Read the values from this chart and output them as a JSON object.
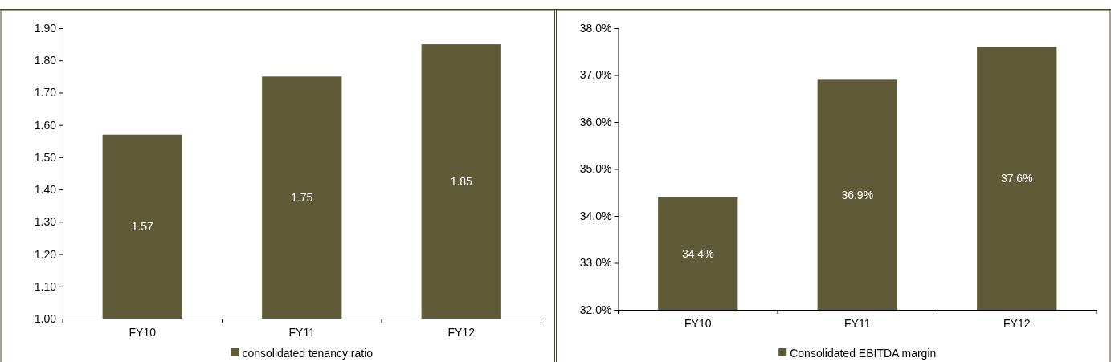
{
  "chart_data": [
    {
      "type": "bar",
      "categories": [
        "FY10",
        "FY11",
        "FY12"
      ],
      "series": [
        {
          "name": "consolidated tenancy ratio",
          "color": "#5f5a38",
          "values": [
            1.57,
            1.75,
            1.85
          ],
          "value_labels": [
            "1.57",
            "1.75",
            "1.85"
          ]
        }
      ],
      "ylim": [
        1.0,
        1.9
      ],
      "yticks": [
        {
          "value": 1.0,
          "label": "1.00"
        },
        {
          "value": 1.1,
          "label": "1.10"
        },
        {
          "value": 1.2,
          "label": "1.20"
        },
        {
          "value": 1.3,
          "label": "1.30"
        },
        {
          "value": 1.4,
          "label": "1.40"
        },
        {
          "value": 1.5,
          "label": "1.50"
        },
        {
          "value": 1.6,
          "label": "1.60"
        },
        {
          "value": 1.7,
          "label": "1.70"
        },
        {
          "value": 1.8,
          "label": "1.80"
        },
        {
          "value": 1.9,
          "label": "1.90"
        }
      ],
      "legend": "bottom",
      "grid": false
    },
    {
      "type": "bar",
      "categories": [
        "FY10",
        "FY11",
        "FY12"
      ],
      "series": [
        {
          "name": "Consolidated EBITDA margin",
          "color": "#5f5a38",
          "values": [
            34.4,
            36.9,
            37.6
          ],
          "value_labels": [
            "34.4%",
            "36.9%",
            "37.6%"
          ]
        }
      ],
      "ylim": [
        32,
        38
      ],
      "yticks": [
        {
          "value": 32,
          "label": "32.0%"
        },
        {
          "value": 33,
          "label": "33.0%"
        },
        {
          "value": 34,
          "label": "34.0%"
        },
        {
          "value": 35,
          "label": "35.0%"
        },
        {
          "value": 36,
          "label": "36.0%"
        },
        {
          "value": 37,
          "label": "37.0%"
        },
        {
          "value": 38,
          "label": "38.0%"
        }
      ],
      "legend": "bottom",
      "grid": false
    }
  ]
}
